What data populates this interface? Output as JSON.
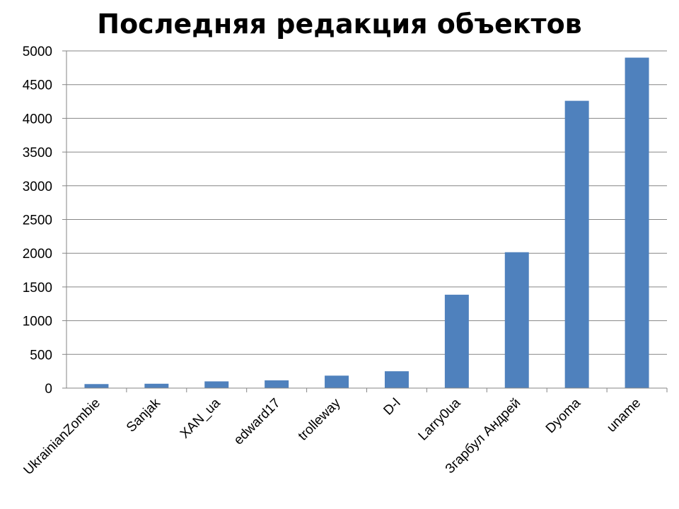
{
  "chart_data": {
    "type": "bar",
    "title": "Последняя редакция объектов",
    "xlabel": "",
    "ylabel": "",
    "categories": [
      "UkrainianZombie",
      "Sanjak",
      "XAN_ua",
      "edward17",
      "trolleway",
      "D-l",
      "Larry0ua",
      "Згарбул Андрей",
      "Dyoma",
      "uname"
    ],
    "values": [
      60,
      65,
      100,
      115,
      185,
      250,
      1385,
      2015,
      4260,
      4900
    ],
    "ylim": [
      0,
      5000
    ],
    "yticks": [
      0,
      500,
      1000,
      1500,
      2000,
      2500,
      3000,
      3500,
      4000,
      4500,
      5000
    ],
    "grid": true,
    "legend": "none",
    "bar_color": "#4F81BD",
    "grid_color": "#868686",
    "axis_color": "#868686"
  }
}
